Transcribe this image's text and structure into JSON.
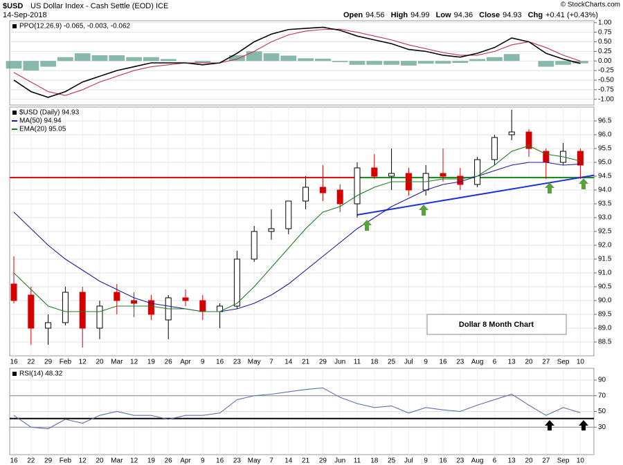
{
  "header": {
    "symbol": "$USD",
    "name": "US Dollar Index - Cash Settle (EOD) ICE",
    "date": "14-Sep-2018",
    "copyright": "© StockCharts.com",
    "quote": [
      {
        "label": "Open",
        "value": "94.56"
      },
      {
        "label": "High",
        "value": "94.99"
      },
      {
        "label": "Low",
        "value": "94.36"
      },
      {
        "label": "Close",
        "value": "94.93"
      },
      {
        "label": "Chg",
        "value": "+0.41 (+0.43%)"
      }
    ]
  },
  "chart_data": [
    {
      "type": "line",
      "title": "PPO(12,26,9) -0.065, -0.003, -0.062",
      "ylim": [
        -1.15,
        1.05
      ],
      "yticks": [
        {
          "value": 1,
          "label": "1.00"
        },
        {
          "value": 0.75,
          "label": "0.75"
        },
        {
          "value": 0.5,
          "label": "0.50"
        },
        {
          "value": 0.25,
          "label": "0.25"
        },
        {
          "value": 0,
          "label": "0.00"
        },
        {
          "value": -0.25,
          "label": "-0.25"
        },
        {
          "value": -0.5,
          "label": "-0.50"
        },
        {
          "value": -0.75,
          "label": "-0.75"
        },
        {
          "value": -1,
          "label": "-1.00"
        }
      ],
      "series": [
        {
          "style": "histogram",
          "color": "#6aa596",
          "values": [
            -0.2,
            -0.25,
            -0.15,
            0.1,
            0.2,
            0.15,
            0.15,
            0.1,
            0.1,
            0.05,
            0,
            -0.05,
            0,
            0.15,
            0.25,
            0.2,
            0.14,
            0.07,
            0.06,
            -0.03,
            -0.1,
            -0.1,
            -0.1,
            -0.12,
            -0.07,
            -0.07,
            -0.05,
            0.05,
            0.1,
            0.18,
            0,
            -0.15,
            -0.1,
            -0.062
          ]
        },
        {
          "style": "line",
          "color": "#c0304a",
          "values": [
            -0.3,
            -0.55,
            -0.8,
            -0.9,
            -0.75,
            -0.55,
            -0.4,
            -0.25,
            -0.15,
            -0.1,
            -0.05,
            -0.05,
            -0.05,
            0.05,
            0.25,
            0.5,
            0.68,
            0.78,
            0.82,
            0.83,
            0.75,
            0.65,
            0.55,
            0.42,
            0.32,
            0.22,
            0.15,
            0.15,
            0.25,
            0.42,
            0.5,
            0.35,
            0.15,
            -0.003
          ]
        },
        {
          "style": "line",
          "color": "#000000",
          "values": [
            -0.5,
            -0.8,
            -0.95,
            -0.8,
            -0.55,
            -0.4,
            -0.25,
            -0.15,
            -0.05,
            -0.05,
            -0.05,
            -0.1,
            -0.05,
            0.2,
            0.5,
            0.7,
            0.82,
            0.85,
            0.88,
            0.8,
            0.65,
            0.55,
            0.45,
            0.3,
            0.25,
            0.15,
            0.1,
            0.2,
            0.35,
            0.6,
            0.5,
            0.2,
            0.05,
            -0.065
          ]
        }
      ]
    },
    {
      "type": "candlestick",
      "title": "$USD (Daily) 94.93",
      "categories": [
        "16",
        "22",
        "29",
        "Feb",
        "12",
        "20",
        "Mar",
        "12",
        "19",
        "26",
        "Apr",
        "9",
        "16",
        "23",
        "May",
        "7",
        "14",
        "21",
        "29",
        "Jun",
        "11",
        "18",
        "25",
        "Jul",
        "9",
        "16",
        "23",
        "Aug",
        "6",
        "13",
        "20",
        "27",
        "Sep",
        "10"
      ],
      "ylim": [
        88,
        97
      ],
      "yticks": [
        88.5,
        {
          "value": 89,
          "label": "89.0"
        },
        89.5,
        {
          "value": 90,
          "label": "90.0"
        },
        90.5,
        {
          "value": 91,
          "label": "91.0"
        },
        91.5,
        {
          "value": 92,
          "label": "92.0"
        },
        92.5,
        {
          "value": 93,
          "label": "93.0"
        },
        93.5,
        {
          "value": 94,
          "label": "94.0"
        },
        94.5,
        {
          "value": 95,
          "label": "95.0"
        },
        95.5,
        {
          "value": 96,
          "label": "96.0"
        },
        96.5
      ],
      "ohlc": {
        "up_color": "#000000",
        "down_color": "#d40000",
        "open": [
          90.6,
          90.2,
          89.0,
          89.2,
          90.3,
          89.0,
          90.3,
          90.0,
          90.0,
          89.3,
          90.1,
          90.0,
          89.6,
          89.8,
          91.5,
          92.5,
          92.6,
          93.6,
          94.1,
          94.0,
          93.5,
          94.8,
          94.5,
          94.6,
          94.0,
          94.6,
          94.5,
          94.2,
          95.1,
          96.0,
          96.1,
          95.4,
          95.0,
          95.4
        ],
        "high": [
          91.6,
          90.5,
          89.5,
          90.5,
          90.5,
          90.0,
          90.6,
          90.3,
          90.2,
          90.2,
          90.4,
          90.2,
          89.9,
          91.8,
          92.7,
          93.3,
          93.6,
          94.5,
          94.9,
          94.2,
          95.0,
          95.3,
          95.5,
          94.8,
          94.9,
          95.5,
          94.8,
          95.2,
          96.0,
          96.9,
          96.2,
          95.5,
          95.7,
          95.5
        ],
        "low": [
          89.9,
          88.4,
          88.4,
          89.1,
          88.3,
          88.6,
          89.5,
          89.4,
          89.3,
          88.6,
          89.8,
          89.3,
          89.0,
          89.7,
          91.4,
          92.2,
          92.4,
          93.3,
          93.6,
          93.2,
          93.0,
          94.4,
          94.0,
          93.8,
          93.8,
          94.3,
          94.0,
          94.1,
          94.9,
          95.8,
          95.2,
          94.4,
          94.9,
          94.4
        ],
        "close": [
          90.0,
          89.0,
          89.2,
          90.3,
          89.0,
          89.8,
          90.0,
          89.9,
          89.5,
          90.1,
          90.0,
          89.6,
          89.8,
          91.5,
          92.5,
          92.6,
          93.6,
          94.1,
          93.9,
          93.5,
          94.8,
          94.5,
          94.6,
          94.0,
          94.6,
          94.5,
          94.2,
          95.1,
          95.9,
          96.1,
          95.5,
          95.0,
          95.4,
          94.9
        ]
      },
      "series": [
        {
          "name": "MA(50) 94.94",
          "color": "#1a1aa0",
          "values": [
            93.2,
            92.6,
            92.0,
            91.5,
            91.1,
            90.7,
            90.4,
            90.1,
            89.9,
            89.8,
            89.7,
            89.6,
            89.6,
            89.7,
            89.9,
            90.2,
            90.6,
            91.1,
            91.6,
            92.1,
            92.6,
            93.0,
            93.4,
            93.7,
            94.0,
            94.2,
            94.3,
            94.5,
            94.7,
            94.9,
            95.0,
            95.0,
            94.9,
            94.94
          ]
        },
        {
          "name": "EMA(20) 95.05",
          "color": "#1e7a1e",
          "values": [
            91.0,
            90.4,
            89.8,
            89.6,
            89.6,
            89.6,
            89.8,
            89.8,
            89.8,
            89.7,
            89.7,
            89.6,
            89.6,
            89.9,
            90.5,
            91.2,
            91.9,
            92.6,
            93.2,
            93.4,
            93.8,
            94.1,
            94.3,
            94.3,
            94.3,
            94.4,
            94.4,
            94.5,
            94.9,
            95.4,
            95.6,
            95.3,
            95.2,
            95.05
          ]
        }
      ],
      "hlines": [
        {
          "value": 94.45,
          "color": "#e01010"
        }
      ],
      "segments": [
        {
          "from": 20,
          "to": 33,
          "y": [
            94.45,
            94.45
          ],
          "color": "#1e8a1e"
        },
        {
          "from": 20,
          "to": 33,
          "y": [
            93.1,
            94.45
          ],
          "color": "#1c2fe0"
        }
      ],
      "annotation": "Dollar 8 Month Chart"
    },
    {
      "type": "line",
      "title": "RSI(14) 48.32",
      "categories": [
        "16",
        "22",
        "29",
        "Feb",
        "12",
        "20",
        "Mar",
        "12",
        "19",
        "26",
        "Apr",
        "9",
        "16",
        "23",
        "May",
        "7",
        "14",
        "21",
        "29",
        "Jun",
        "11",
        "18",
        "25",
        "Jul",
        "9",
        "16",
        "23",
        "Aug",
        "6",
        "13",
        "20",
        "27",
        "Sep",
        "10"
      ],
      "ylim": [
        -5,
        105
      ],
      "yticks": [
        30,
        50,
        70,
        90
      ],
      "series": [
        {
          "style": "line",
          "color": "#5a6fb0",
          "values": [
            45,
            30,
            28,
            40,
            35,
            45,
            50,
            45,
            45,
            40,
            45,
            45,
            48,
            65,
            70,
            72,
            75,
            78,
            80,
            68,
            60,
            55,
            57,
            48,
            55,
            52,
            50,
            58,
            65,
            72,
            58,
            45,
            55,
            48.32
          ]
        }
      ],
      "hlines": [
        {
          "value": 70,
          "color": "#888888"
        },
        {
          "value": 30,
          "color": "#888888"
        },
        {
          "value": 41,
          "color": "#000000"
        }
      ]
    }
  ]
}
